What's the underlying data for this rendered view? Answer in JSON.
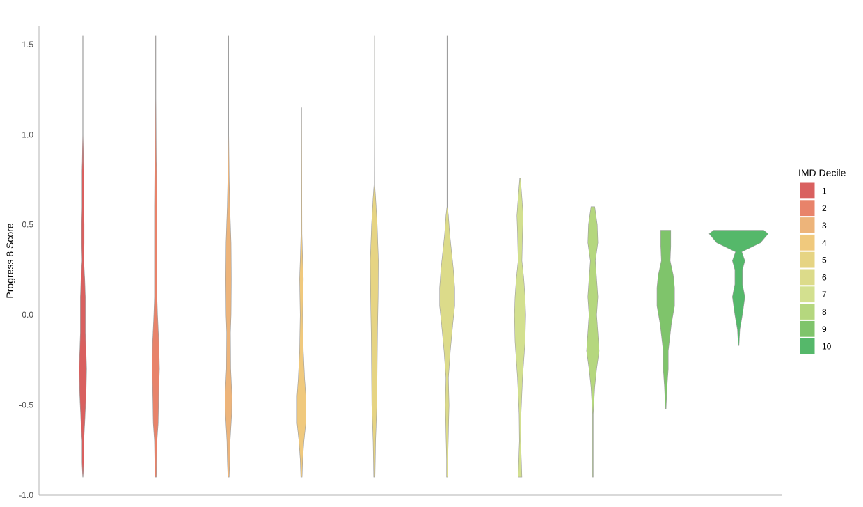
{
  "chart_data": {
    "type": "violin",
    "title": "",
    "xlabel": "",
    "ylabel": "Progress 8 Score",
    "ylim": [
      -1.0,
      1.6
    ],
    "yticks": [
      "1.5",
      "1.0",
      "0.5",
      "0.0",
      "-0.5",
      "-1.0"
    ],
    "ytick_values": [
      1.5,
      1.0,
      0.5,
      0.0,
      -0.5,
      -1.0
    ],
    "grid": false,
    "legend": {
      "title": "IMD Decile",
      "position": "right"
    },
    "series": [
      {
        "name": "1",
        "color": "#d9605f",
        "min": -0.9,
        "max": 1.55,
        "density": [
          [
            -0.9,
            0.3
          ],
          [
            -0.82,
            1.5
          ],
          [
            -0.7,
            1.5
          ],
          [
            -0.6,
            3
          ],
          [
            -0.45,
            5
          ],
          [
            -0.3,
            6
          ],
          [
            -0.2,
            5
          ],
          [
            -0.1,
            4
          ],
          [
            0.0,
            4
          ],
          [
            0.1,
            4
          ],
          [
            0.2,
            3
          ],
          [
            0.3,
            1.5
          ],
          [
            0.4,
            2
          ],
          [
            0.5,
            2
          ],
          [
            0.6,
            1.5
          ],
          [
            0.8,
            1.5
          ],
          [
            0.85,
            1
          ],
          [
            1.0,
            0.3
          ],
          [
            1.55,
            0.3
          ]
        ]
      },
      {
        "name": "2",
        "color": "#e8836a",
        "min": -0.9,
        "max": 1.55,
        "density": [
          [
            -0.9,
            1
          ],
          [
            -0.8,
            1.5
          ],
          [
            -0.7,
            2
          ],
          [
            -0.6,
            4
          ],
          [
            -0.4,
            5
          ],
          [
            -0.3,
            6
          ],
          [
            -0.15,
            5
          ],
          [
            0.0,
            3
          ],
          [
            0.1,
            2
          ],
          [
            0.2,
            2
          ],
          [
            0.4,
            2
          ],
          [
            0.6,
            2
          ],
          [
            0.8,
            1.5
          ],
          [
            0.85,
            1
          ],
          [
            1.2,
            0.3
          ],
          [
            1.55,
            0.3
          ]
        ]
      },
      {
        "name": "3",
        "color": "#edb47a",
        "min": -0.9,
        "max": 1.55,
        "density": [
          [
            -0.9,
            1
          ],
          [
            -0.8,
            2
          ],
          [
            -0.7,
            2.5
          ],
          [
            -0.55,
            5
          ],
          [
            -0.45,
            5.5
          ],
          [
            -0.3,
            3.5
          ],
          [
            -0.1,
            3
          ],
          [
            0.0,
            4
          ],
          [
            0.2,
            4.5
          ],
          [
            0.4,
            4
          ],
          [
            0.6,
            2
          ],
          [
            0.77,
            1
          ],
          [
            1.0,
            0.3
          ],
          [
            1.55,
            0.3
          ]
        ]
      },
      {
        "name": "4",
        "color": "#f0c97d",
        "min": -0.9,
        "max": 1.15,
        "density": [
          [
            -0.9,
            1
          ],
          [
            -0.8,
            2
          ],
          [
            -0.7,
            4
          ],
          [
            -0.6,
            7
          ],
          [
            -0.45,
            7
          ],
          [
            -0.35,
            5
          ],
          [
            -0.2,
            3
          ],
          [
            0.0,
            2
          ],
          [
            0.2,
            3
          ],
          [
            0.3,
            2
          ],
          [
            0.45,
            0.8
          ],
          [
            0.8,
            0.5
          ],
          [
            1.15,
            0.3
          ]
        ]
      },
      {
        "name": "5",
        "color": "#e6d483",
        "min": -0.9,
        "max": 1.55,
        "density": [
          [
            -0.9,
            1
          ],
          [
            -0.7,
            2
          ],
          [
            -0.5,
            4
          ],
          [
            -0.3,
            4.5
          ],
          [
            -0.1,
            5
          ],
          [
            0.1,
            6
          ],
          [
            0.3,
            6.5
          ],
          [
            0.5,
            4.5
          ],
          [
            0.65,
            2
          ],
          [
            0.72,
            0.5
          ],
          [
            1.0,
            0.3
          ],
          [
            1.55,
            0.3
          ]
        ]
      },
      {
        "name": "6",
        "color": "#dcdb8a",
        "min": -0.9,
        "max": 1.55,
        "density": [
          [
            -0.9,
            1
          ],
          [
            -0.8,
            1
          ],
          [
            -0.65,
            2
          ],
          [
            -0.5,
            3
          ],
          [
            -0.35,
            2
          ],
          [
            -0.2,
            5
          ],
          [
            -0.05,
            9
          ],
          [
            0.05,
            12
          ],
          [
            0.15,
            12
          ],
          [
            0.25,
            10
          ],
          [
            0.35,
            7
          ],
          [
            0.45,
            4
          ],
          [
            0.55,
            2
          ],
          [
            0.6,
            0.3
          ],
          [
            1.55,
            0.3
          ]
        ]
      },
      {
        "name": "7",
        "color": "#d3e08f",
        "min": -0.9,
        "max": 0.76,
        "density": [
          [
            -0.9,
            3
          ],
          [
            -0.8,
            2
          ],
          [
            -0.7,
            1
          ],
          [
            -0.55,
            1.5
          ],
          [
            -0.35,
            4
          ],
          [
            -0.25,
            6
          ],
          [
            -0.15,
            8
          ],
          [
            0.0,
            9
          ],
          [
            0.1,
            8
          ],
          [
            0.2,
            6
          ],
          [
            0.3,
            3
          ],
          [
            0.45,
            4
          ],
          [
            0.55,
            5
          ],
          [
            0.65,
            3
          ],
          [
            0.76,
            0.5
          ]
        ]
      },
      {
        "name": "8",
        "color": "#b5d77e",
        "min": -0.9,
        "max": 0.6,
        "density": [
          [
            -0.9,
            0.5
          ],
          [
            -0.55,
            0.5
          ],
          [
            -0.4,
            3
          ],
          [
            -0.3,
            6
          ],
          [
            -0.2,
            10
          ],
          [
            -0.1,
            8
          ],
          [
            0.0,
            6
          ],
          [
            0.1,
            8
          ],
          [
            0.2,
            6
          ],
          [
            0.3,
            4
          ],
          [
            0.4,
            8
          ],
          [
            0.5,
            7
          ],
          [
            0.6,
            3
          ]
        ]
      },
      {
        "name": "9",
        "color": "#7fc46b",
        "min": -0.52,
        "max": 0.47,
        "density": [
          [
            -0.52,
            0.5
          ],
          [
            -0.4,
            2
          ],
          [
            -0.3,
            4
          ],
          [
            -0.2,
            4
          ],
          [
            -0.05,
            9
          ],
          [
            0.05,
            14
          ],
          [
            0.15,
            14
          ],
          [
            0.22,
            12
          ],
          [
            0.3,
            7
          ],
          [
            0.38,
            8
          ],
          [
            0.47,
            8
          ]
        ]
      },
      {
        "name": "10",
        "color": "#55b86a",
        "min": -0.17,
        "max": 0.47,
        "density": [
          [
            -0.17,
            0.5
          ],
          [
            -0.08,
            2
          ],
          [
            0.0,
            6
          ],
          [
            0.1,
            10
          ],
          [
            0.17,
            6
          ],
          [
            0.25,
            6
          ],
          [
            0.3,
            10
          ],
          [
            0.35,
            5
          ],
          [
            0.4,
            35
          ],
          [
            0.45,
            47
          ],
          [
            0.47,
            40
          ]
        ]
      }
    ]
  }
}
